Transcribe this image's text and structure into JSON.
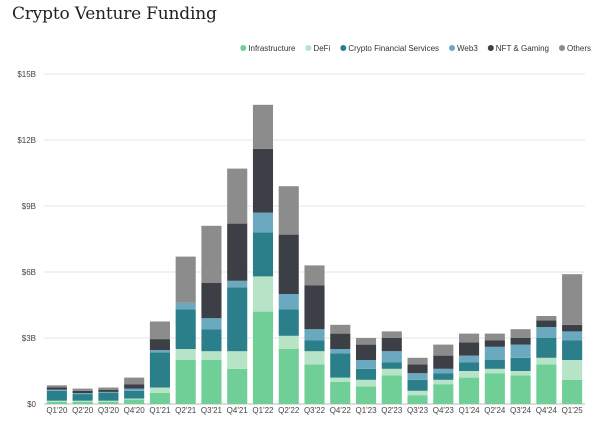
{
  "chart_data": {
    "type": "bar",
    "stacked": true,
    "title": "Crypto Venture Funding",
    "xlabel": "",
    "ylabel": "",
    "ylim": [
      0,
      15
    ],
    "yticks": [
      0,
      3,
      6,
      9,
      12,
      15
    ],
    "ytick_labels": [
      "$0",
      "$3B",
      "$6B",
      "$9B",
      "$12B",
      "$15B"
    ],
    "grid": true,
    "legend_position": "top-right",
    "categories": [
      "Q1'20",
      "Q2'20",
      "Q3'20",
      "Q4'20",
      "Q1'21",
      "Q2'21",
      "Q3'21",
      "Q4'21",
      "Q1'22",
      "Q2'22",
      "Q3'22",
      "Q4'22",
      "Q1'23",
      "Q2'23",
      "Q3'23",
      "Q4'23",
      "Q1'24",
      "Q2'24",
      "Q3'24",
      "Q4'24",
      "Q1'25"
    ],
    "series": [
      {
        "name": "Infrastructure",
        "color": "#6fcf97",
        "values": [
          0.1,
          0.1,
          0.1,
          0.2,
          0.5,
          2.0,
          2.0,
          1.6,
          4.2,
          2.5,
          1.8,
          1.0,
          0.8,
          1.3,
          0.4,
          0.9,
          1.2,
          1.4,
          1.3,
          1.8,
          1.1
        ]
      },
      {
        "name": "DeFi",
        "color": "#b7e4c7",
        "values": [
          0.05,
          0.05,
          0.05,
          0.05,
          0.25,
          0.5,
          0.4,
          0.8,
          1.6,
          0.6,
          0.6,
          0.2,
          0.3,
          0.3,
          0.2,
          0.2,
          0.3,
          0.2,
          0.2,
          0.3,
          0.9
        ]
      },
      {
        "name": "Crypto Financial Services",
        "color": "#2a7f8a",
        "values": [
          0.45,
          0.3,
          0.35,
          0.35,
          1.6,
          1.8,
          1.0,
          2.9,
          2.0,
          1.2,
          0.5,
          1.1,
          0.5,
          0.3,
          0.5,
          0.3,
          0.4,
          0.4,
          0.6,
          0.9,
          0.9
        ]
      },
      {
        "name": "Web3",
        "color": "#6aa9c0",
        "values": [
          0.05,
          0.05,
          0.05,
          0.1,
          0.1,
          0.3,
          0.5,
          0.3,
          0.9,
          0.7,
          0.5,
          0.2,
          0.4,
          0.5,
          0.3,
          0.2,
          0.3,
          0.6,
          0.6,
          0.5,
          0.4
        ]
      },
      {
        "name": "NFT & Gaming",
        "color": "#3d3f46",
        "values": [
          0.1,
          0.1,
          0.1,
          0.2,
          0.5,
          0.0,
          1.6,
          2.6,
          2.9,
          2.7,
          2.0,
          0.7,
          0.7,
          0.6,
          0.4,
          0.6,
          0.6,
          0.3,
          0.3,
          0.3,
          0.3
        ]
      },
      {
        "name": "Others",
        "color": "#8c8c8c",
        "values": [
          0.1,
          0.1,
          0.1,
          0.3,
          0.8,
          2.1,
          2.6,
          2.5,
          2.0,
          2.2,
          0.9,
          0.4,
          0.3,
          0.3,
          0.3,
          0.5,
          0.4,
          0.3,
          0.4,
          0.2,
          2.3
        ]
      }
    ]
  }
}
